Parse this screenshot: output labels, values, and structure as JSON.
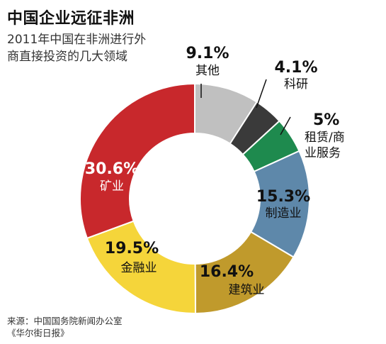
{
  "header": {
    "title": "中国企业远征非洲",
    "subtitle_line1": "2011年中国在非洲进行外",
    "subtitle_line2": "商直接投资的几大领域"
  },
  "footer": {
    "source_line1": "来源：中国国务院新闻办公室",
    "source_line2": "《华尔街日报》"
  },
  "chart_data": {
    "type": "pie",
    "donut": true,
    "title": "中国企业远征非洲",
    "subtitle": "2011年中国在非洲进行外商直接投资的几大领域",
    "slices": [
      {
        "label": "其他",
        "value": 9.1,
        "value_label": "9.1%",
        "color": "#c0c0c0"
      },
      {
        "label": "科研",
        "value": 4.1,
        "value_label": "4.1%",
        "color": "#3a3a3a"
      },
      {
        "label": "租赁/商业服务",
        "label_lines": [
          "租赁/商",
          "业服务"
        ],
        "value": 5,
        "value_label": "5%",
        "color": "#1e8a4e"
      },
      {
        "label": "制造业",
        "value": 15.3,
        "value_label": "15.3%",
        "color": "#5e88aa"
      },
      {
        "label": "建筑业",
        "value": 16.4,
        "value_label": "16.4%",
        "color": "#c09a2c"
      },
      {
        "label": "金融业",
        "value": 19.5,
        "value_label": "19.5%",
        "color": "#f5d53a"
      },
      {
        "label": "矿业",
        "value": 30.6,
        "value_label": "30.6%",
        "color": "#c8282c"
      }
    ],
    "legend": "none"
  }
}
